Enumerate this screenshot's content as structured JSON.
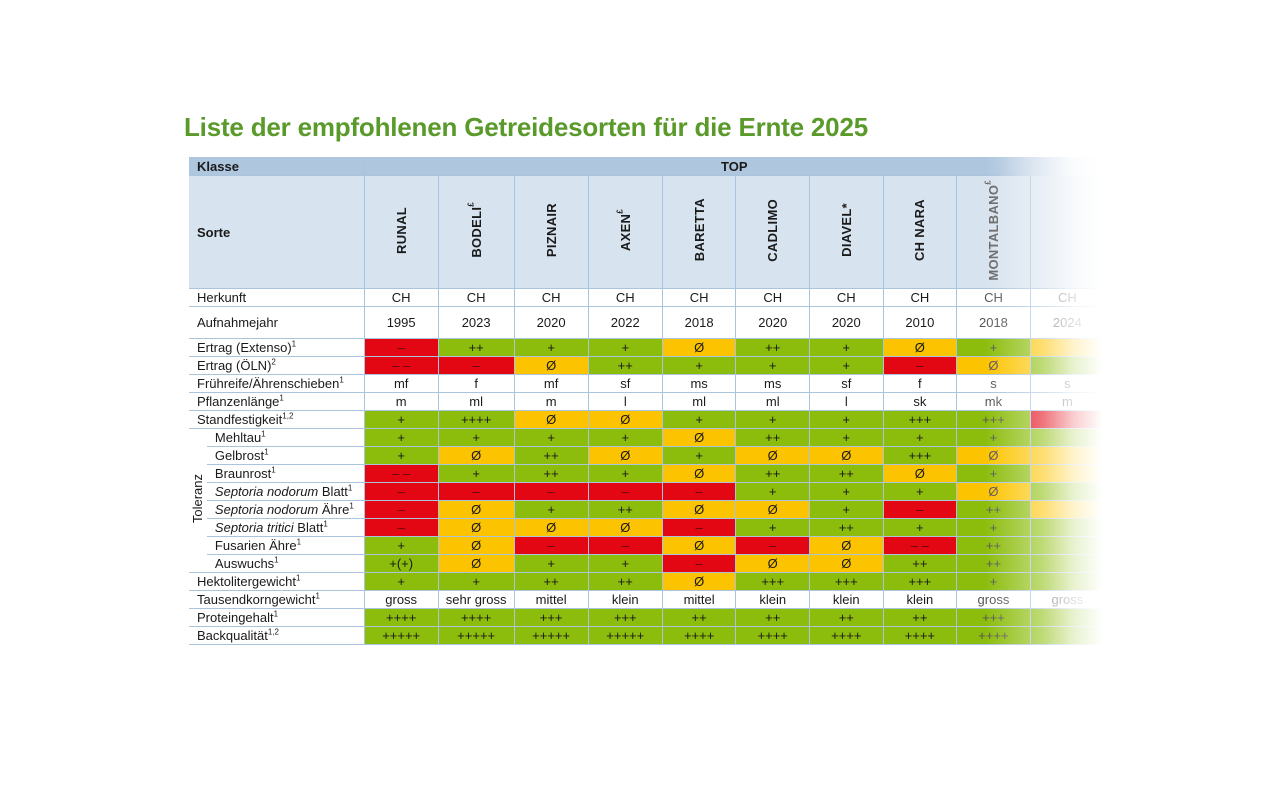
{
  "title": "Liste der empfohlenen Getreidesorten für die Ernte 2025",
  "klasse_label": "Klasse",
  "klasse_value": "TOP",
  "sorte_label": "Sorte",
  "toleranz_label": "Toleranz",
  "colors": {
    "red": "#e30613",
    "green": "#8cbd0c",
    "yellow": "#fcc400",
    "header": "#aec6de",
    "title": "#5a9a2a"
  },
  "varieties": [
    {
      "name": "RUNAL",
      "mark": ""
    },
    {
      "name": "BODELI",
      "mark": "£"
    },
    {
      "name": "PIZNAIR",
      "mark": ""
    },
    {
      "name": "AXEN",
      "mark": "£"
    },
    {
      "name": "BARETTA",
      "mark": ""
    },
    {
      "name": "CADLIMO",
      "mark": ""
    },
    {
      "name": "DIAVEL*",
      "mark": ""
    },
    {
      "name": "CH NARA",
      "mark": ""
    },
    {
      "name": "MONTALBANO",
      "mark": "£"
    },
    {
      "name": "",
      "mark": ""
    }
  ],
  "rows": [
    {
      "label": "Herkunft",
      "sup": "",
      "group": "",
      "cells": [
        [
          "CH",
          "w"
        ],
        [
          "CH",
          "w"
        ],
        [
          "CH",
          "w"
        ],
        [
          "CH",
          "w"
        ],
        [
          "CH",
          "w"
        ],
        [
          "CH",
          "w"
        ],
        [
          "CH",
          "w"
        ],
        [
          "CH",
          "w"
        ],
        [
          "CH",
          "w"
        ],
        [
          "CH",
          "w"
        ]
      ]
    },
    {
      "label": "Aufnahmejahr",
      "sup": "",
      "group": "",
      "cls": "year",
      "cells": [
        [
          "1995",
          "w"
        ],
        [
          "2023",
          "w"
        ],
        [
          "2020",
          "w"
        ],
        [
          "2022",
          "w"
        ],
        [
          "2018",
          "w"
        ],
        [
          "2020",
          "w"
        ],
        [
          "2020",
          "w"
        ],
        [
          "2010",
          "w"
        ],
        [
          "2018",
          "w"
        ],
        [
          "2024",
          "w"
        ]
      ]
    },
    {
      "label": "Ertrag (Extenso)",
      "sup": "1",
      "group": "",
      "cells": [
        [
          "–",
          "r"
        ],
        [
          "++",
          "g"
        ],
        [
          "+",
          "g"
        ],
        [
          "+",
          "g"
        ],
        [
          "Ø",
          "y"
        ],
        [
          "++",
          "g"
        ],
        [
          "+",
          "g"
        ],
        [
          "Ø",
          "y"
        ],
        [
          "+",
          "g"
        ],
        [
          "",
          "y"
        ]
      ]
    },
    {
      "label": "Ertrag (ÖLN)",
      "sup": "2",
      "group": "",
      "cells": [
        [
          "– –",
          "r"
        ],
        [
          "–",
          "r"
        ],
        [
          "Ø",
          "y"
        ],
        [
          "++",
          "g"
        ],
        [
          "+",
          "g"
        ],
        [
          "+",
          "g"
        ],
        [
          "+",
          "g"
        ],
        [
          "–",
          "r"
        ],
        [
          "Ø",
          "y"
        ],
        [
          "",
          "g"
        ]
      ]
    },
    {
      "label": "Frühreife/Ährenschieben",
      "sup": "1",
      "group": "",
      "cells": [
        [
          "mf",
          "w"
        ],
        [
          "f",
          "w"
        ],
        [
          "mf",
          "w"
        ],
        [
          "sf",
          "w"
        ],
        [
          "ms",
          "w"
        ],
        [
          "ms",
          "w"
        ],
        [
          "sf",
          "w"
        ],
        [
          "f",
          "w"
        ],
        [
          "s",
          "w"
        ],
        [
          "s",
          "w"
        ]
      ]
    },
    {
      "label": "Pflanzenlänge",
      "sup": "1",
      "group": "",
      "cells": [
        [
          "m",
          "w"
        ],
        [
          "ml",
          "w"
        ],
        [
          "m",
          "w"
        ],
        [
          "l",
          "w"
        ],
        [
          "ml",
          "w"
        ],
        [
          "ml",
          "w"
        ],
        [
          "l",
          "w"
        ],
        [
          "sk",
          "w"
        ],
        [
          "mk",
          "w"
        ],
        [
          "m",
          "w"
        ]
      ]
    },
    {
      "label": "Standfestigkeit",
      "sup": "1,2",
      "group": "",
      "cells": [
        [
          "+",
          "g"
        ],
        [
          "++++",
          "g"
        ],
        [
          "Ø",
          "y"
        ],
        [
          "Ø",
          "y"
        ],
        [
          "+",
          "g"
        ],
        [
          "+",
          "g"
        ],
        [
          "+",
          "g"
        ],
        [
          "+++",
          "g"
        ],
        [
          "+++",
          "g"
        ],
        [
          "",
          "r"
        ]
      ]
    },
    {
      "label": "Mehltau",
      "sup": "1",
      "group": "tol",
      "cells": [
        [
          "+",
          "g"
        ],
        [
          "+",
          "g"
        ],
        [
          "+",
          "g"
        ],
        [
          "+",
          "g"
        ],
        [
          "Ø",
          "y"
        ],
        [
          "++",
          "g"
        ],
        [
          "+",
          "g"
        ],
        [
          "+",
          "g"
        ],
        [
          "+",
          "g"
        ],
        [
          "",
          "g"
        ]
      ]
    },
    {
      "label": "Gelbrost",
      "sup": "1",
      "group": "tol",
      "cells": [
        [
          "+",
          "g"
        ],
        [
          "Ø",
          "y"
        ],
        [
          "++",
          "g"
        ],
        [
          "Ø",
          "y"
        ],
        [
          "+",
          "g"
        ],
        [
          "Ø",
          "y"
        ],
        [
          "Ø",
          "y"
        ],
        [
          "+++",
          "g"
        ],
        [
          "Ø",
          "y"
        ],
        [
          "",
          "y"
        ]
      ]
    },
    {
      "label": "Braunrost",
      "sup": "1",
      "group": "tol",
      "cells": [
        [
          "– –",
          "r"
        ],
        [
          "+",
          "g"
        ],
        [
          "++",
          "g"
        ],
        [
          "+",
          "g"
        ],
        [
          "Ø",
          "y"
        ],
        [
          "++",
          "g"
        ],
        [
          "++",
          "g"
        ],
        [
          "Ø",
          "y"
        ],
        [
          "+",
          "g"
        ],
        [
          "",
          "y"
        ]
      ]
    },
    {
      "label": "Blatt",
      "italic": "Septoria nodorum",
      "sup": "1",
      "group": "tol",
      "cells": [
        [
          "–",
          "r"
        ],
        [
          "–",
          "r"
        ],
        [
          "–",
          "r"
        ],
        [
          "–",
          "r"
        ],
        [
          "–",
          "r"
        ],
        [
          "+",
          "g"
        ],
        [
          "+",
          "g"
        ],
        [
          "+",
          "g"
        ],
        [
          "Ø",
          "y"
        ],
        [
          "",
          "g"
        ]
      ]
    },
    {
      "label": "Ähre",
      "italic": "Septoria nodorum",
      "sup": "1",
      "group": "tol",
      "cells": [
        [
          "–",
          "r"
        ],
        [
          "Ø",
          "y"
        ],
        [
          "+",
          "g"
        ],
        [
          "++",
          "g"
        ],
        [
          "Ø",
          "y"
        ],
        [
          "Ø",
          "y"
        ],
        [
          "+",
          "g"
        ],
        [
          "–",
          "r"
        ],
        [
          "++",
          "g"
        ],
        [
          "",
          "y"
        ]
      ]
    },
    {
      "label": "Blatt",
      "italic": "Septoria tritici",
      "sup": "1",
      "group": "tol",
      "cells": [
        [
          "–",
          "r"
        ],
        [
          "Ø",
          "y"
        ],
        [
          "Ø",
          "y"
        ],
        [
          "Ø",
          "y"
        ],
        [
          "–",
          "r"
        ],
        [
          "+",
          "g"
        ],
        [
          "++",
          "g"
        ],
        [
          "+",
          "g"
        ],
        [
          "+",
          "g"
        ],
        [
          "",
          "g"
        ]
      ]
    },
    {
      "label": "Fusarien Ähre",
      "sup": "1",
      "group": "tol",
      "cells": [
        [
          "+",
          "g"
        ],
        [
          "Ø",
          "y"
        ],
        [
          "–",
          "r"
        ],
        [
          "–",
          "r"
        ],
        [
          "Ø",
          "y"
        ],
        [
          "–",
          "r"
        ],
        [
          "Ø",
          "y"
        ],
        [
          "– –",
          "r"
        ],
        [
          "++",
          "g"
        ],
        [
          "",
          "g"
        ]
      ]
    },
    {
      "label": "Auswuchs",
      "sup": "1",
      "group": "tol",
      "cells": [
        [
          "+(+)",
          "g"
        ],
        [
          "Ø",
          "y"
        ],
        [
          "+",
          "g"
        ],
        [
          "+",
          "g"
        ],
        [
          "–",
          "r"
        ],
        [
          "Ø",
          "y"
        ],
        [
          "Ø",
          "y"
        ],
        [
          "++",
          "g"
        ],
        [
          "++",
          "g"
        ],
        [
          "",
          "g"
        ]
      ]
    },
    {
      "label": "Hektolitergewicht",
      "sup": "1",
      "group": "",
      "cells": [
        [
          "+",
          "g"
        ],
        [
          "+",
          "g"
        ],
        [
          "++",
          "g"
        ],
        [
          "++",
          "g"
        ],
        [
          "Ø",
          "y"
        ],
        [
          "+++",
          "g"
        ],
        [
          "+++",
          "g"
        ],
        [
          "+++",
          "g"
        ],
        [
          "+",
          "g"
        ],
        [
          "",
          "g"
        ]
      ]
    },
    {
      "label": "Tausendkorngewicht",
      "sup": "1",
      "group": "",
      "cells": [
        [
          "gross",
          "w"
        ],
        [
          "sehr gross",
          "w"
        ],
        [
          "mittel",
          "w"
        ],
        [
          "klein",
          "w"
        ],
        [
          "mittel",
          "w"
        ],
        [
          "klein",
          "w"
        ],
        [
          "klein",
          "w"
        ],
        [
          "klein",
          "w"
        ],
        [
          "gross",
          "w"
        ],
        [
          "gross",
          "w"
        ]
      ]
    },
    {
      "label": "Proteingehalt",
      "sup": "1",
      "group": "",
      "cells": [
        [
          "++++",
          "g"
        ],
        [
          "++++",
          "g"
        ],
        [
          "+++",
          "g"
        ],
        [
          "+++",
          "g"
        ],
        [
          "++",
          "g"
        ],
        [
          "++",
          "g"
        ],
        [
          "++",
          "g"
        ],
        [
          "++",
          "g"
        ],
        [
          "+++",
          "g"
        ],
        [
          "",
          "g"
        ]
      ]
    },
    {
      "label": "Backqualität",
      "sup": "1,2",
      "group": "",
      "cells": [
        [
          "+++++",
          "g"
        ],
        [
          "+++++",
          "g"
        ],
        [
          "+++++",
          "g"
        ],
        [
          "+++++",
          "g"
        ],
        [
          "++++",
          "g"
        ],
        [
          "++++",
          "g"
        ],
        [
          "++++",
          "g"
        ],
        [
          "++++",
          "g"
        ],
        [
          "++++",
          "g"
        ],
        [
          "",
          "g"
        ]
      ]
    }
  ]
}
